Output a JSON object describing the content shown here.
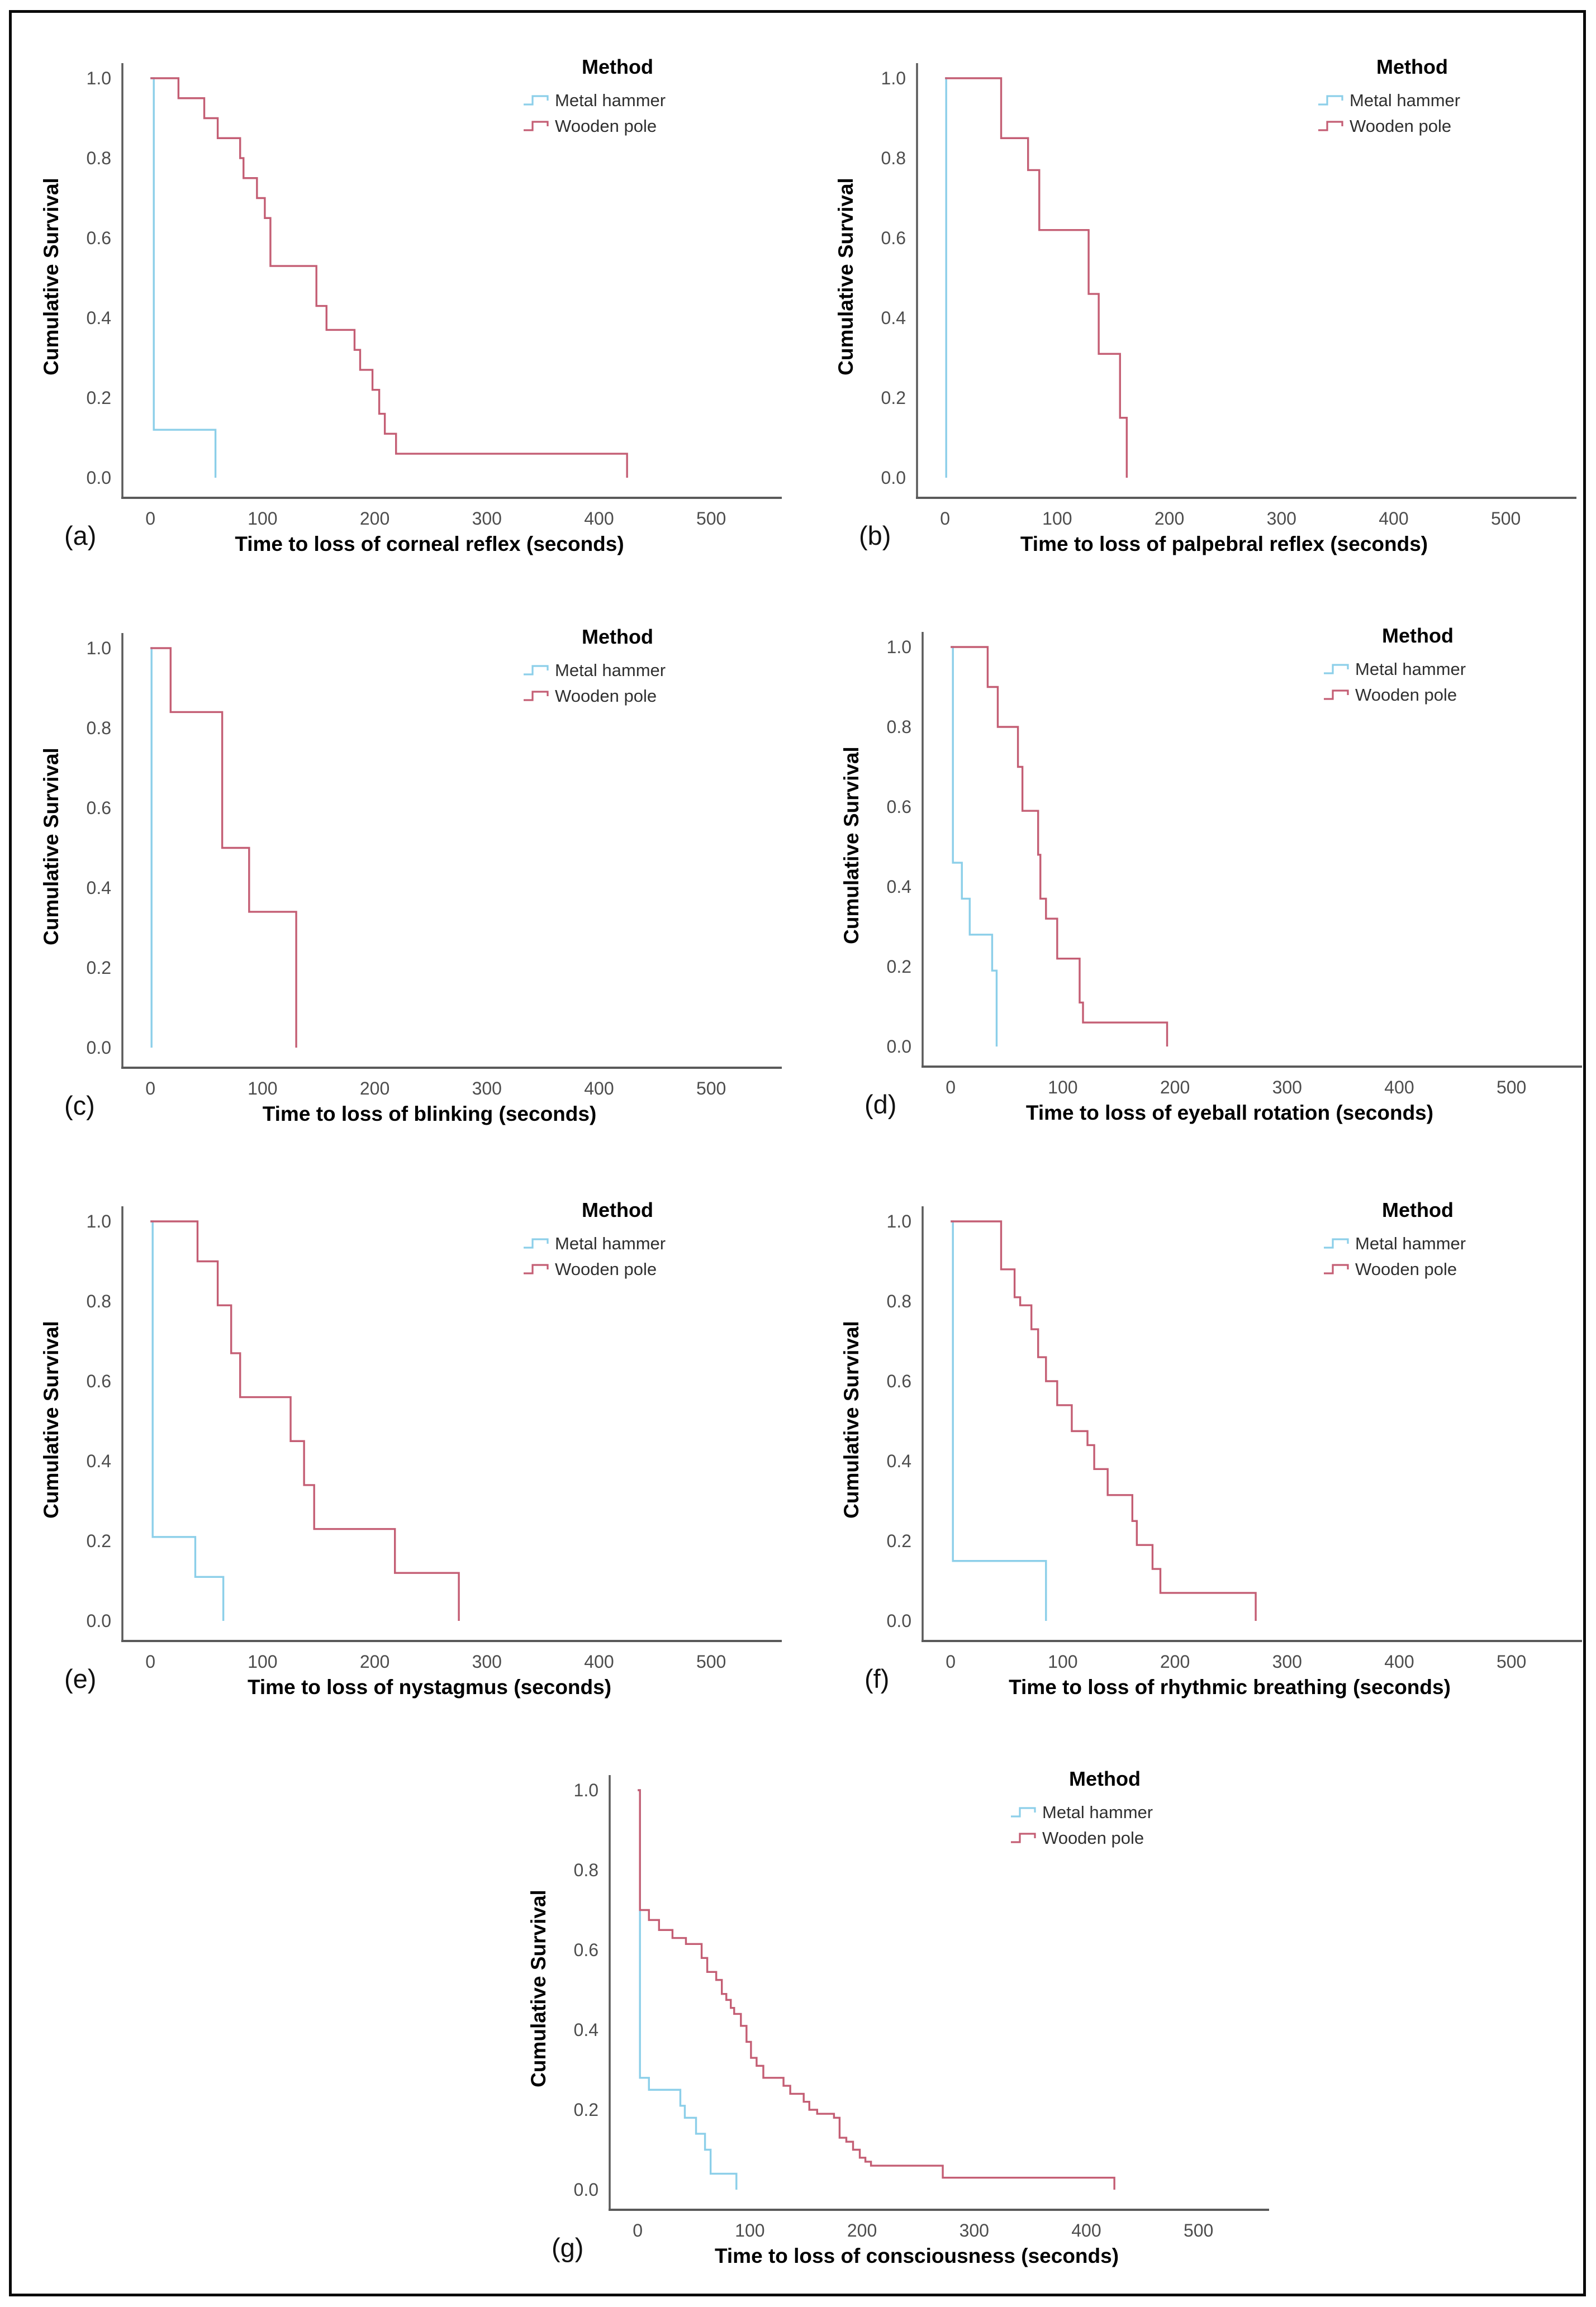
{
  "colors": {
    "metal_hammer": "#8CCFE9",
    "wooden_pole": "#C45E74",
    "axis": "#5a5a5a",
    "tick_text": "#4d4d4d",
    "label_text": "#000000",
    "legend_text": "#2f2f2f",
    "background": "#ffffff",
    "frame": "#0a0a0a"
  },
  "layout": {
    "rows": [
      [
        "a",
        "b"
      ],
      [
        "c",
        "d"
      ],
      [
        "e",
        "f"
      ],
      [
        "g"
      ]
    ],
    "legend_position": "top-right",
    "grid": "off"
  },
  "chart_data": [
    {
      "id": "a",
      "panel_label": "(a)",
      "type": "line",
      "step": true,
      "xlabel": "Time to loss of corneal reflex (seconds)",
      "ylabel": "Cumulative Survival",
      "xlim": [
        0,
        500
      ],
      "ylim": [
        0,
        1.0
      ],
      "xticks": [
        0,
        100,
        200,
        300,
        400,
        500
      ],
      "yticks": [
        0.0,
        0.2,
        0.4,
        0.6,
        0.8,
        1.0
      ],
      "legend": {
        "title": "Method",
        "entries": [
          "Metal hammer",
          "Wooden pole"
        ]
      },
      "series": [
        {
          "name": "Metal hammer",
          "color_key": "metal_hammer",
          "steps": [
            [
              0,
              1.0
            ],
            [
              3,
              0.12
            ],
            [
              58,
              0
            ]
          ]
        },
        {
          "name": "Wooden pole",
          "color_key": "wooden_pole",
          "steps": [
            [
              0,
              1.0
            ],
            [
              25,
              0.95
            ],
            [
              48,
              0.9
            ],
            [
              60,
              0.85
            ],
            [
              80,
              0.8
            ],
            [
              83,
              0.75
            ],
            [
              95,
              0.7
            ],
            [
              102,
              0.65
            ],
            [
              107,
              0.53
            ],
            [
              148,
              0.43
            ],
            [
              157,
              0.37
            ],
            [
              182,
              0.32
            ],
            [
              187,
              0.27
            ],
            [
              198,
              0.22
            ],
            [
              204,
              0.16
            ],
            [
              209,
              0.11
            ],
            [
              219,
              0.06
            ],
            [
              425,
              0
            ]
          ]
        }
      ]
    },
    {
      "id": "b",
      "panel_label": "(b)",
      "type": "line",
      "step": true,
      "xlabel": "Time to loss of palpebral reflex (seconds)",
      "ylabel": "Cumulative Survival",
      "xlim": [
        0,
        500
      ],
      "ylim": [
        0,
        1.0
      ],
      "xticks": [
        0,
        100,
        200,
        300,
        400,
        500
      ],
      "yticks": [
        0.0,
        0.2,
        0.4,
        0.6,
        0.8,
        1.0
      ],
      "legend": {
        "title": "Method",
        "entries": [
          "Metal hammer",
          "Wooden pole"
        ]
      },
      "series": [
        {
          "name": "Metal hammer",
          "color_key": "metal_hammer",
          "steps": [
            [
              0,
              1.0
            ],
            [
              1,
              0
            ]
          ]
        },
        {
          "name": "Wooden pole",
          "color_key": "wooden_pole",
          "steps": [
            [
              0,
              1.0
            ],
            [
              50,
              0.85
            ],
            [
              74,
              0.77
            ],
            [
              84,
              0.62
            ],
            [
              128,
              0.46
            ],
            [
              137,
              0.31
            ],
            [
              156,
              0.15
            ],
            [
              162,
              0
            ]
          ]
        }
      ]
    },
    {
      "id": "c",
      "panel_label": "(c)",
      "type": "line",
      "step": true,
      "xlabel": "Time to loss of blinking (seconds)",
      "ylabel": "Cumulative Survival",
      "xlim": [
        0,
        500
      ],
      "ylim": [
        0,
        1.0
      ],
      "xticks": [
        0,
        100,
        200,
        300,
        400,
        500
      ],
      "yticks": [
        0.0,
        0.2,
        0.4,
        0.6,
        0.8,
        1.0
      ],
      "legend": {
        "title": "Method",
        "entries": [
          "Metal hammer",
          "Wooden pole"
        ]
      },
      "series": [
        {
          "name": "Metal hammer",
          "color_key": "metal_hammer",
          "steps": [
            [
              0,
              1.0
            ],
            [
              1,
              0
            ]
          ]
        },
        {
          "name": "Wooden pole",
          "color_key": "wooden_pole",
          "steps": [
            [
              0,
              1.0
            ],
            [
              18,
              0.84
            ],
            [
              64,
              0.5
            ],
            [
              88,
              0.34
            ],
            [
              130,
              0
            ]
          ]
        }
      ]
    },
    {
      "id": "d",
      "panel_label": "(d)",
      "type": "line",
      "step": true,
      "xlabel": "Time to loss of eyeball rotation (seconds)",
      "ylabel": "Cumulative Survival",
      "xlim": [
        0,
        500
      ],
      "ylim": [
        0,
        1.0
      ],
      "xticks": [
        0,
        100,
        200,
        300,
        400,
        500
      ],
      "yticks": [
        0.0,
        0.2,
        0.4,
        0.6,
        0.8,
        1.0
      ],
      "legend": {
        "title": "Method",
        "entries": [
          "Metal hammer",
          "Wooden pole"
        ]
      },
      "series": [
        {
          "name": "Metal hammer",
          "color_key": "metal_hammer",
          "steps": [
            [
              0,
              1.0
            ],
            [
              2,
              0.46
            ],
            [
              10,
              0.37
            ],
            [
              17,
              0.28
            ],
            [
              37,
              0.19
            ],
            [
              41,
              0
            ]
          ]
        },
        {
          "name": "Wooden pole",
          "color_key": "wooden_pole",
          "steps": [
            [
              0,
              1.0
            ],
            [
              33,
              0.9
            ],
            [
              42,
              0.8
            ],
            [
              60,
              0.7
            ],
            [
              64,
              0.59
            ],
            [
              78,
              0.48
            ],
            [
              80,
              0.37
            ],
            [
              85,
              0.32
            ],
            [
              95,
              0.22
            ],
            [
              115,
              0.11
            ],
            [
              118,
              0.06
            ],
            [
              193,
              0
            ]
          ]
        }
      ]
    },
    {
      "id": "e",
      "panel_label": "(e)",
      "type": "line",
      "step": true,
      "xlabel": "Time to loss of nystagmus (seconds)",
      "ylabel": "Cumulative Survival",
      "xlim": [
        0,
        500
      ],
      "ylim": [
        0,
        1.0
      ],
      "xticks": [
        0,
        100,
        200,
        300,
        400,
        500
      ],
      "yticks": [
        0.0,
        0.2,
        0.4,
        0.6,
        0.8,
        1.0
      ],
      "legend": {
        "title": "Method",
        "entries": [
          "Metal hammer",
          "Wooden pole"
        ]
      },
      "series": [
        {
          "name": "Metal hammer",
          "color_key": "metal_hammer",
          "steps": [
            [
              0,
              1.0
            ],
            [
              2,
              0.21
            ],
            [
              40,
              0.11
            ],
            [
              65,
              0
            ]
          ]
        },
        {
          "name": "Wooden pole",
          "color_key": "wooden_pole",
          "steps": [
            [
              0,
              1.0
            ],
            [
              42,
              0.9
            ],
            [
              60,
              0.79
            ],
            [
              72,
              0.67
            ],
            [
              80,
              0.56
            ],
            [
              125,
              0.45
            ],
            [
              137,
              0.34
            ],
            [
              146,
              0.23
            ],
            [
              218,
              0.12
            ],
            [
              275,
              0
            ]
          ]
        }
      ]
    },
    {
      "id": "f",
      "panel_label": "(f)",
      "type": "line",
      "step": true,
      "xlabel": "Time to loss of rhythmic breathing (seconds)",
      "ylabel": "Cumulative Survival",
      "xlim": [
        0,
        500
      ],
      "ylim": [
        0,
        1.0
      ],
      "xticks": [
        0,
        100,
        200,
        300,
        400,
        500
      ],
      "yticks": [
        0.0,
        0.2,
        0.4,
        0.6,
        0.8,
        1.0
      ],
      "legend": {
        "title": "Method",
        "entries": [
          "Metal hammer",
          "Wooden pole"
        ]
      },
      "series": [
        {
          "name": "Metal hammer",
          "color_key": "metal_hammer",
          "steps": [
            [
              0,
              1.0
            ],
            [
              2,
              0.15
            ],
            [
              85,
              0
            ]
          ]
        },
        {
          "name": "Wooden pole",
          "color_key": "wooden_pole",
          "steps": [
            [
              0,
              1.0
            ],
            [
              45,
              0.88
            ],
            [
              57,
              0.81
            ],
            [
              62,
              0.79
            ],
            [
              72,
              0.73
            ],
            [
              78,
              0.66
            ],
            [
              85,
              0.6
            ],
            [
              95,
              0.54
            ],
            [
              108,
              0.475
            ],
            [
              122,
              0.44
            ],
            [
              128,
              0.38
            ],
            [
              140,
              0.315
            ],
            [
              162,
              0.25
            ],
            [
              166,
              0.19
            ],
            [
              180,
              0.13
            ],
            [
              187,
              0.07
            ],
            [
              272,
              0
            ]
          ]
        }
      ]
    },
    {
      "id": "g",
      "panel_label": "(g)",
      "type": "line",
      "step": true,
      "xlabel": "Time to loss of consciousness (seconds)",
      "ylabel": "Cumulative Survival",
      "xlim": [
        0,
        500
      ],
      "ylim": [
        0,
        1.0
      ],
      "xticks": [
        0,
        100,
        200,
        300,
        400,
        500
      ],
      "yticks": [
        0.0,
        0.2,
        0.4,
        0.6,
        0.8,
        1.0
      ],
      "legend": {
        "title": "Method",
        "entries": [
          "Metal hammer",
          "Wooden pole"
        ]
      },
      "series": [
        {
          "name": "Metal hammer",
          "color_key": "metal_hammer",
          "steps": [
            [
              0,
              1.0
            ],
            [
              2,
              0.28
            ],
            [
              10,
              0.25
            ],
            [
              38,
              0.21
            ],
            [
              42,
              0.18
            ],
            [
              52,
              0.14
            ],
            [
              60,
              0.1
            ],
            [
              65,
              0.04
            ],
            [
              88,
              0
            ]
          ]
        },
        {
          "name": "Wooden pole",
          "color_key": "wooden_pole",
          "steps": [
            [
              0,
              1.0
            ],
            [
              2,
              0.7
            ],
            [
              10,
              0.675
            ],
            [
              19,
              0.65
            ],
            [
              31,
              0.63
            ],
            [
              43,
              0.615
            ],
            [
              57,
              0.58
            ],
            [
              62,
              0.545
            ],
            [
              70,
              0.525
            ],
            [
              75,
              0.49
            ],
            [
              79,
              0.475
            ],
            [
              83,
              0.455
            ],
            [
              86,
              0.44
            ],
            [
              92,
              0.41
            ],
            [
              97,
              0.37
            ],
            [
              101,
              0.33
            ],
            [
              106,
              0.31
            ],
            [
              112,
              0.28
            ],
            [
              130,
              0.26
            ],
            [
              136,
              0.24
            ],
            [
              148,
              0.22
            ],
            [
              153,
              0.2
            ],
            [
              160,
              0.19
            ],
            [
              175,
              0.18
            ],
            [
              180,
              0.13
            ],
            [
              186,
              0.12
            ],
            [
              192,
              0.1
            ],
            [
              198,
              0.08
            ],
            [
              203,
              0.07
            ],
            [
              208,
              0.06
            ],
            [
              272,
              0.03
            ],
            [
              425,
              0
            ]
          ]
        }
      ]
    }
  ]
}
